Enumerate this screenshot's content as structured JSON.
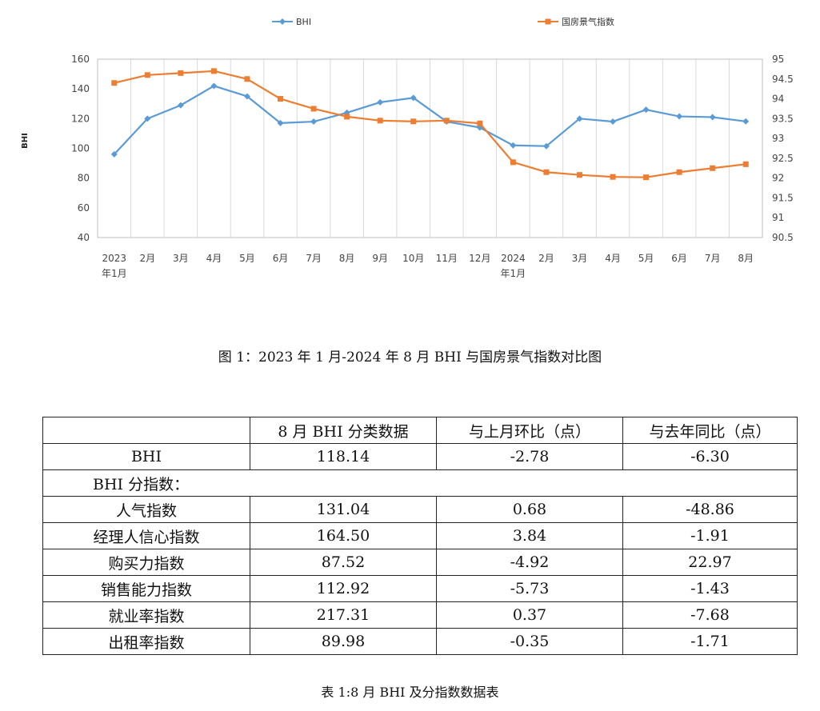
{
  "chart_data": {
    "type": "line",
    "categories": [
      "2023年1月",
      "2月",
      "3月",
      "4月",
      "5月",
      "6月",
      "7月",
      "8月",
      "9月",
      "10月",
      "11月",
      "12月",
      "2024年1月",
      "2月",
      "3月",
      "4月",
      "5月",
      "6月",
      "7月",
      "8月"
    ],
    "category_labels": [
      [
        "2023",
        "年1月"
      ],
      [
        "2月"
      ],
      [
        "3月"
      ],
      [
        "4月"
      ],
      [
        "5月"
      ],
      [
        "6月"
      ],
      [
        "7月"
      ],
      [
        "8月"
      ],
      [
        "9月"
      ],
      [
        "10月"
      ],
      [
        "11月"
      ],
      [
        "12月"
      ],
      [
        "2024",
        "年1月"
      ],
      [
        "2月"
      ],
      [
        "3月"
      ],
      [
        "4月"
      ],
      [
        "5月"
      ],
      [
        "6月"
      ],
      [
        "7月"
      ],
      [
        "8月"
      ]
    ],
    "series": [
      {
        "name": "BHI",
        "axis": "left",
        "color": "#5B9BD5",
        "marker": "diamond",
        "values": [
          96,
          120,
          129,
          142,
          135,
          117,
          118,
          124,
          131,
          134,
          118,
          114,
          102,
          101.5,
          120,
          118,
          126,
          121.5,
          121,
          118.14
        ]
      },
      {
        "name": "国房景气指数",
        "axis": "right",
        "color": "#ED7D31",
        "marker": "square",
        "values": [
          94.4,
          94.6,
          94.65,
          94.7,
          94.5,
          94.0,
          93.75,
          93.55,
          93.45,
          93.43,
          93.45,
          93.38,
          92.4,
          92.15,
          92.08,
          92.03,
          92.02,
          92.15,
          92.25,
          92.35
        ]
      }
    ],
    "ylabel": "BHI",
    "ylim": [
      40,
      160
    ],
    "yticks": [
      "40",
      "60",
      "80",
      "100",
      "120",
      "140",
      "160"
    ],
    "y2lim": [
      90.5,
      95
    ],
    "y2ticks": [
      "90.5",
      "91",
      "91.5",
      "92",
      "92.5",
      "93",
      "93.5",
      "94",
      "94.5",
      "95"
    ],
    "grid": "vertical",
    "legend": "top"
  },
  "figure_caption": "图 1：2023 年 1 月-2024 年 8 月 BHI 与国房景气指数对比图",
  "table": {
    "headers": [
      "",
      "8 月 BHI 分类数据",
      "与上月环比（点）",
      "与去年同比（点）"
    ],
    "main_row": {
      "name": "BHI",
      "value": "118.14",
      "mom": "-2.78",
      "yoy": "-6.30"
    },
    "sub_header": "BHI 分指数：",
    "rows": [
      {
        "name": "人气指数",
        "value": "131.04",
        "mom": "0.68",
        "yoy": "-48.86"
      },
      {
        "name": "经理人信心指数",
        "value": "164.50",
        "mom": "3.84",
        "yoy": "-1.91"
      },
      {
        "name": "购买力指数",
        "value": "87.52",
        "mom": "-4.92",
        "yoy": "22.97"
      },
      {
        "name": "销售能力指数",
        "value": "112.92",
        "mom": "-5.73",
        "yoy": "-1.43"
      },
      {
        "name": "就业率指数",
        "value": "217.31",
        "mom": "0.37",
        "yoy": "-7.68"
      },
      {
        "name": "出租率指数",
        "value": "89.98",
        "mom": "-0.35",
        "yoy": "-1.71"
      }
    ]
  },
  "table_caption": "表 1:8 月 BHI 及分指数数据表"
}
